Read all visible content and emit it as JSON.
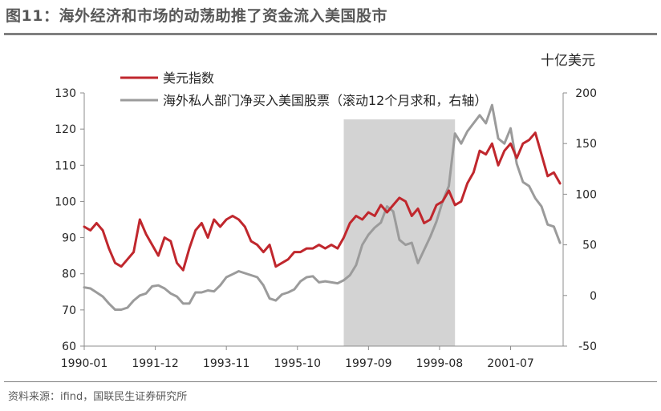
{
  "figure": {
    "title": "图11：海外经济和市场的动荡助推了资金流入美国股市",
    "source": "资料来源：ifind，国联民生证券研究所"
  },
  "colors": {
    "usd_line": "#c0272d",
    "flow_line": "#9b9b9b",
    "shade": "#d3d3d3",
    "rule": "#7f7f7f",
    "text": "#262626"
  },
  "chart_data": {
    "type": "line",
    "right_axis_unit": "十亿美元",
    "x_ticks": [
      "1990-01",
      "1991-12",
      "1993-11",
      "1995-10",
      "1997-09",
      "1999-08",
      "2001-07"
    ],
    "x_range": [
      "1990-01",
      "2002-12"
    ],
    "y_left": {
      "range": [
        60,
        130
      ],
      "ticks": [
        60,
        70,
        80,
        90,
        100,
        110,
        120,
        130
      ]
    },
    "y_right": {
      "range": [
        -50,
        200
      ],
      "ticks": [
        -50,
        0,
        50,
        100,
        150,
        200
      ]
    },
    "grid": false,
    "legend_position": "top-left",
    "shaded_period": [
      "1997-01",
      "2000-01"
    ],
    "series": [
      {
        "name": "美元指数",
        "axis": "left",
        "color": "#c0272d",
        "points": [
          [
            "1990-01",
            93
          ],
          [
            "1990-03",
            92
          ],
          [
            "1990-05",
            94
          ],
          [
            "1990-07",
            92
          ],
          [
            "1990-09",
            87
          ],
          [
            "1990-11",
            83
          ],
          [
            "1991-01",
            82
          ],
          [
            "1991-03",
            84
          ],
          [
            "1991-05",
            86
          ],
          [
            "1991-07",
            95
          ],
          [
            "1991-09",
            91
          ],
          [
            "1991-11",
            88
          ],
          [
            "1992-01",
            85
          ],
          [
            "1992-03",
            90
          ],
          [
            "1992-05",
            89
          ],
          [
            "1992-07",
            83
          ],
          [
            "1992-09",
            81
          ],
          [
            "1992-11",
            87
          ],
          [
            "1993-01",
            92
          ],
          [
            "1993-03",
            94
          ],
          [
            "1993-05",
            90
          ],
          [
            "1993-07",
            95
          ],
          [
            "1993-09",
            93
          ],
          [
            "1993-11",
            95
          ],
          [
            "1994-01",
            96
          ],
          [
            "1994-03",
            95
          ],
          [
            "1994-05",
            93
          ],
          [
            "1994-07",
            89
          ],
          [
            "1994-09",
            88
          ],
          [
            "1994-11",
            86
          ],
          [
            "1995-01",
            88
          ],
          [
            "1995-03",
            82
          ],
          [
            "1995-05",
            83
          ],
          [
            "1995-07",
            84
          ],
          [
            "1995-09",
            86
          ],
          [
            "1995-11",
            86
          ],
          [
            "1996-01",
            87
          ],
          [
            "1996-03",
            87
          ],
          [
            "1996-05",
            88
          ],
          [
            "1996-07",
            87
          ],
          [
            "1996-09",
            88
          ],
          [
            "1996-11",
            87
          ],
          [
            "1997-01",
            90
          ],
          [
            "1997-03",
            94
          ],
          [
            "1997-05",
            96
          ],
          [
            "1997-07",
            95
          ],
          [
            "1997-09",
            97
          ],
          [
            "1997-11",
            96
          ],
          [
            "1998-01",
            99
          ],
          [
            "1998-03",
            97
          ],
          [
            "1998-05",
            99
          ],
          [
            "1998-07",
            101
          ],
          [
            "1998-09",
            100
          ],
          [
            "1998-11",
            96
          ],
          [
            "1999-01",
            98
          ],
          [
            "1999-03",
            94
          ],
          [
            "1999-05",
            95
          ],
          [
            "1999-07",
            99
          ],
          [
            "1999-09",
            100
          ],
          [
            "1999-11",
            103
          ],
          [
            "2000-01",
            99
          ],
          [
            "2000-03",
            100
          ],
          [
            "2000-05",
            105
          ],
          [
            "2000-07",
            108
          ],
          [
            "2000-09",
            114
          ],
          [
            "2000-11",
            113
          ],
          [
            "2001-01",
            116
          ],
          [
            "2001-03",
            110
          ],
          [
            "2001-05",
            114
          ],
          [
            "2001-07",
            116
          ],
          [
            "2001-09",
            112
          ],
          [
            "2001-11",
            116
          ],
          [
            "2002-01",
            117
          ],
          [
            "2002-03",
            119
          ],
          [
            "2002-05",
            113
          ],
          [
            "2002-07",
            107
          ],
          [
            "2002-09",
            108
          ],
          [
            "2002-11",
            105
          ]
        ]
      },
      {
        "name": "海外私人部门净买入美国股票（滚动12个月求和，右轴）",
        "axis": "right",
        "color": "#9b9b9b",
        "points": [
          [
            "1990-01",
            8
          ],
          [
            "1990-03",
            7
          ],
          [
            "1990-05",
            3
          ],
          [
            "1990-07",
            -1
          ],
          [
            "1990-09",
            -8
          ],
          [
            "1990-11",
            -14
          ],
          [
            "1991-01",
            -14
          ],
          [
            "1991-03",
            -12
          ],
          [
            "1991-05",
            -5
          ],
          [
            "1991-07",
            0
          ],
          [
            "1991-09",
            2
          ],
          [
            "1991-11",
            9
          ],
          [
            "1992-01",
            10
          ],
          [
            "1992-03",
            7
          ],
          [
            "1992-05",
            2
          ],
          [
            "1992-07",
            -1
          ],
          [
            "1992-09",
            -8
          ],
          [
            "1992-11",
            -8
          ],
          [
            "1993-01",
            3
          ],
          [
            "1993-03",
            3
          ],
          [
            "1993-05",
            5
          ],
          [
            "1993-07",
            4
          ],
          [
            "1993-09",
            10
          ],
          [
            "1993-11",
            18
          ],
          [
            "1994-01",
            21
          ],
          [
            "1994-03",
            24
          ],
          [
            "1994-05",
            22
          ],
          [
            "1994-07",
            20
          ],
          [
            "1994-09",
            18
          ],
          [
            "1994-11",
            10
          ],
          [
            "1995-01",
            -3
          ],
          [
            "1995-03",
            -5
          ],
          [
            "1995-05",
            1
          ],
          [
            "1995-07",
            3
          ],
          [
            "1995-09",
            6
          ],
          [
            "1995-11",
            14
          ],
          [
            "1996-01",
            18
          ],
          [
            "1996-03",
            19
          ],
          [
            "1996-05",
            13
          ],
          [
            "1996-07",
            14
          ],
          [
            "1996-09",
            13
          ],
          [
            "1996-11",
            12
          ],
          [
            "1997-01",
            15
          ],
          [
            "1997-03",
            20
          ],
          [
            "1997-05",
            30
          ],
          [
            "1997-07",
            50
          ],
          [
            "1997-09",
            60
          ],
          [
            "1997-11",
            67
          ],
          [
            "1998-01",
            72
          ],
          [
            "1998-03",
            88
          ],
          [
            "1998-05",
            83
          ],
          [
            "1998-07",
            55
          ],
          [
            "1998-09",
            50
          ],
          [
            "1998-11",
            52
          ],
          [
            "1999-01",
            32
          ],
          [
            "1999-03",
            45
          ],
          [
            "1999-05",
            58
          ],
          [
            "1999-07",
            73
          ],
          [
            "1999-09",
            93
          ],
          [
            "1999-11",
            108
          ],
          [
            "2000-01",
            160
          ],
          [
            "2000-03",
            150
          ],
          [
            "2000-05",
            162
          ],
          [
            "2000-07",
            170
          ],
          [
            "2000-09",
            178
          ],
          [
            "2000-11",
            170
          ],
          [
            "2001-01",
            188
          ],
          [
            "2001-03",
            155
          ],
          [
            "2001-05",
            150
          ],
          [
            "2001-07",
            165
          ],
          [
            "2001-09",
            130
          ],
          [
            "2001-11",
            112
          ],
          [
            "2002-01",
            108
          ],
          [
            "2002-03",
            96
          ],
          [
            "2002-05",
            88
          ],
          [
            "2002-07",
            70
          ],
          [
            "2002-09",
            68
          ],
          [
            "2002-11",
            52
          ]
        ]
      }
    ]
  }
}
